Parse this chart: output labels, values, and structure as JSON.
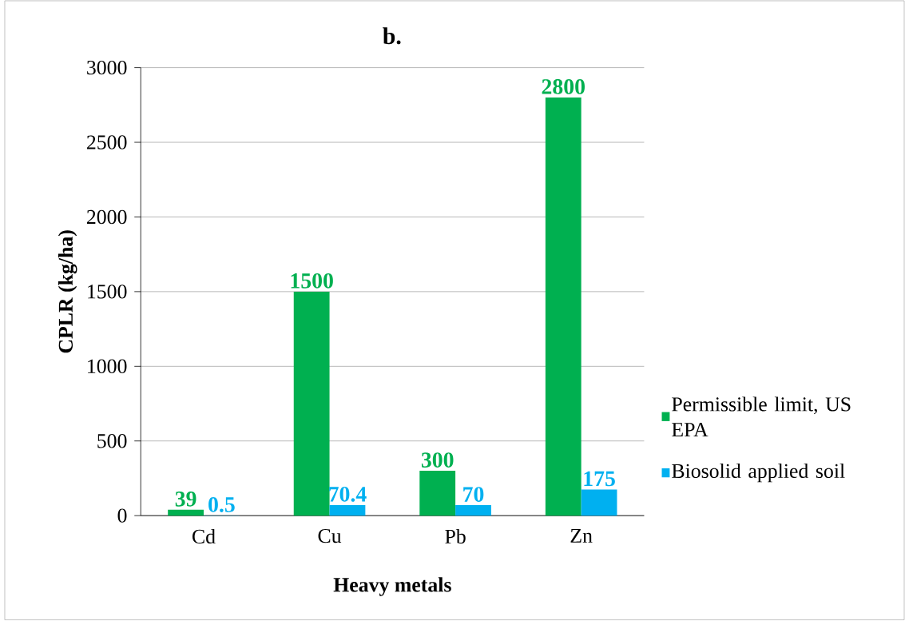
{
  "chart_data": {
    "type": "bar",
    "title": "b.",
    "xlabel": "Heavy metals",
    "ylabel": "CPLR (kg/ha)",
    "categories": [
      "Cd",
      "Cu",
      "Pb",
      "Zn"
    ],
    "series": [
      {
        "name": "Permissible limit, US EPA",
        "color": "#00b050",
        "values": [
          39,
          1500,
          300,
          2800
        ]
      },
      {
        "name": "Biosolid applied soil",
        "color": "#00b0f0",
        "values": [
          0.5,
          70.4,
          70,
          175
        ]
      }
    ],
    "ylim": [
      0,
      3000
    ],
    "yticks": [
      0,
      500,
      1000,
      1500,
      2000,
      2500,
      3000
    ],
    "grid": "y",
    "legend": "right",
    "data_labels": true
  }
}
